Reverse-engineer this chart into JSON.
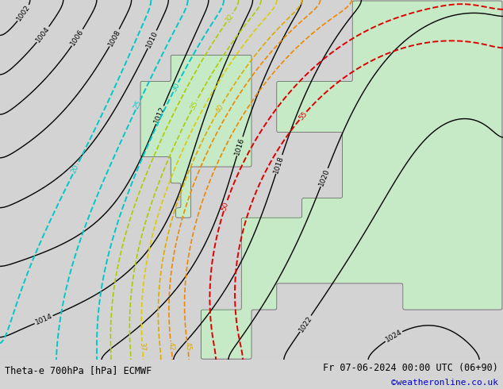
{
  "title_left": "Theta-e 700hPa [hPa] ECMWF",
  "title_right": "Fr 07-06-2024 00:00 UTC (06+90)",
  "credit": "©weatheronline.co.uk",
  "bg_color": "#d4d4d4",
  "bottom_bar_color": "#ffffff",
  "bottom_text_color": "#000000",
  "credit_color": "#0000cc",
  "figsize": [
    6.34,
    4.9
  ],
  "dpi": 100
}
